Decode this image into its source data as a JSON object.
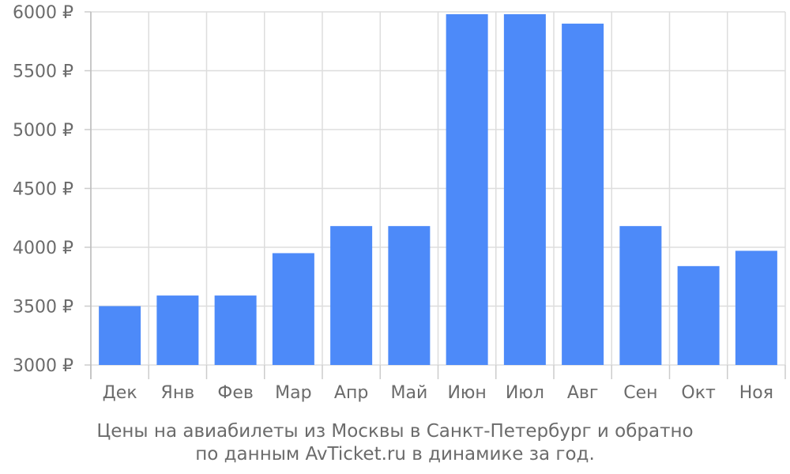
{
  "chart_data": {
    "type": "bar",
    "categories": [
      "Дек",
      "Янв",
      "Фев",
      "Мар",
      "Апр",
      "Май",
      "Июн",
      "Июл",
      "Авг",
      "Сен",
      "Окт",
      "Ноя"
    ],
    "values": [
      3500,
      3590,
      3590,
      3950,
      4180,
      4180,
      5980,
      5980,
      5900,
      4180,
      3840,
      3970
    ],
    "ylim": [
      3000,
      6000
    ],
    "yticks": [
      3000,
      3500,
      4000,
      4500,
      5000,
      5500,
      6000
    ],
    "ytick_labels": [
      "3000 ₽",
      "3500 ₽",
      "4000 ₽",
      "4500 ₽",
      "5000 ₽",
      "5500 ₽",
      "6000 ₽"
    ],
    "grid": true,
    "bar_color": "#4d8af9",
    "title": "",
    "xlabel": "",
    "ylabel": ""
  },
  "caption": {
    "line1": "Цены на авиабилеты из Москвы в Санкт-Петербург и обратно",
    "line2": "по данным AvTicket.ru в динамике за год."
  }
}
